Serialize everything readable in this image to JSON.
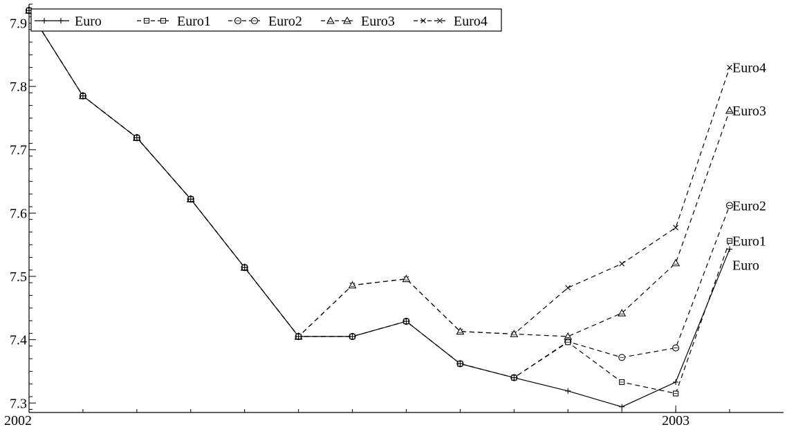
{
  "chart_data": {
    "type": "line",
    "x_tick_labels": [
      "2002",
      "2003"
    ],
    "x": [
      2002.0,
      2002.0833,
      2002.1667,
      2002.25,
      2002.3333,
      2002.4167,
      2002.5,
      2002.5833,
      2002.6667,
      2002.75,
      2002.8333,
      2002.9167,
      2003.0,
      2003.0833
    ],
    "xlim": [
      2002.0,
      2003.1667
    ],
    "ylim": [
      7.285,
      7.93
    ],
    "yticks": [
      7.3,
      7.4,
      7.5,
      7.6,
      7.7,
      7.8,
      7.9
    ],
    "ytick_labels": [
      "7.3",
      "7.4",
      "7.5",
      "7.6",
      "7.7",
      "7.8",
      "7.9"
    ],
    "grid": false,
    "legend_position": "top-left",
    "series": [
      {
        "name": "Euro",
        "end_label": "Euro",
        "marker": "+",
        "dash": "solid",
        "values": [
          7.92,
          7.785,
          7.719,
          7.622,
          7.514,
          7.405,
          7.405,
          7.429,
          7.362,
          7.34,
          7.319,
          7.294,
          7.333,
          7.543
        ]
      },
      {
        "name": "Euro1",
        "end_label": "Euro1",
        "marker": "square",
        "dash": "dashed",
        "values": [
          7.92,
          7.785,
          7.719,
          7.622,
          7.514,
          7.405,
          7.405,
          7.429,
          7.362,
          7.34,
          7.396,
          7.333,
          7.315,
          7.556
        ]
      },
      {
        "name": "Euro2",
        "end_label": "Euro2",
        "marker": "circle",
        "dash": "dashed",
        "values": [
          7.92,
          7.785,
          7.719,
          7.622,
          7.514,
          7.405,
          7.405,
          7.429,
          7.362,
          7.34,
          7.397,
          7.372,
          7.387,
          7.612
        ]
      },
      {
        "name": "Euro3",
        "end_label": "Euro3",
        "marker": "triangle",
        "dash": "dashed",
        "values": [
          7.92,
          7.785,
          7.719,
          7.622,
          7.514,
          7.405,
          7.486,
          7.496,
          7.413,
          7.409,
          7.405,
          7.442,
          7.521,
          7.762
        ]
      },
      {
        "name": "Euro4",
        "end_label": "Euro4",
        "marker": "x",
        "dash": "dashed",
        "values": [
          7.92,
          7.785,
          7.719,
          7.622,
          7.514,
          7.405,
          7.486,
          7.496,
          7.413,
          7.409,
          7.482,
          7.52,
          7.577,
          7.83
        ]
      }
    ]
  }
}
